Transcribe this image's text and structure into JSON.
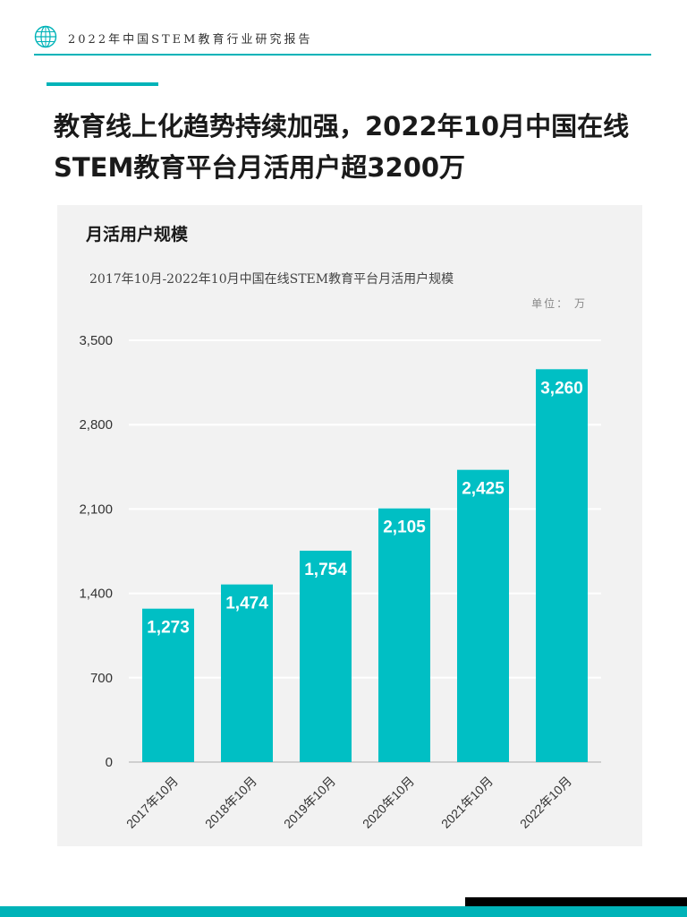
{
  "header": {
    "title": "2022年中国STEM教育行业研究报告",
    "icon": "globe-icon"
  },
  "headline": {
    "line1": "教育线上化趋势持续加强，2022年10月中国在线",
    "line2": "STEM教育平台月活用户超3200万"
  },
  "panel": {
    "title": "月活用户规模"
  },
  "colors": {
    "accent": "#00b3b8",
    "bar": "#00bfc4",
    "panel_bg": "#f2f2f2"
  },
  "chart_data": {
    "type": "bar",
    "title": "2017年10月-2022年10月中国在线STEM教育平台月活用户规模",
    "unit_label": "单位： 万",
    "categories": [
      "2017年10月",
      "2018年10月",
      "2019年10月",
      "2020年10月",
      "2021年10月",
      "2022年10月"
    ],
    "values": [
      1273,
      1474,
      1754,
      2105,
      2425,
      3260
    ],
    "value_labels": [
      "1,273",
      "1,474",
      "1,754",
      "2,105",
      "2,425",
      "3,260"
    ],
    "ylim": [
      0,
      3500
    ],
    "yticks": [
      "0",
      "700",
      "1,400",
      "2,100",
      "2,800",
      "3,500"
    ],
    "ytick_values": [
      0,
      700,
      1400,
      2100,
      2800,
      3500
    ],
    "grid": true,
    "xlabel": "",
    "ylabel": ""
  }
}
